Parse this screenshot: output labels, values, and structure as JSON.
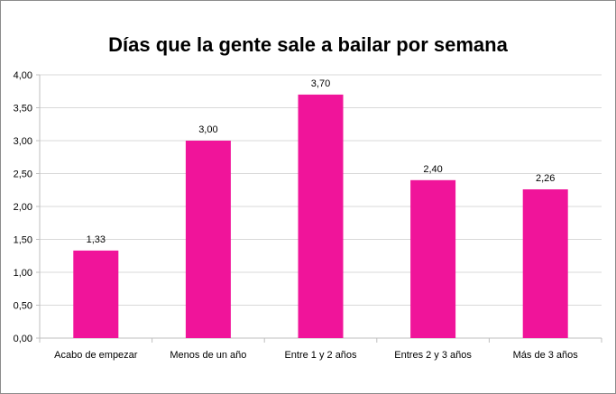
{
  "chart_data": {
    "type": "bar",
    "title": "Días que la gente sale a bailar por semana",
    "categories": [
      "Acabo de empezar",
      "Menos de un año",
      "Entre 1 y 2 años",
      "Entres 2 y 3 años",
      "Más de 3 años"
    ],
    "values": [
      1.33,
      3.0,
      3.7,
      2.4,
      2.26
    ],
    "data_labels": [
      "1,33",
      "3,00",
      "3,70",
      "2,40",
      "2,26"
    ],
    "xlabel": "",
    "ylabel": "",
    "ylim": [
      0,
      4
    ],
    "yticks": [
      0,
      0.5,
      1,
      1.5,
      2,
      2.5,
      3,
      3.5,
      4
    ],
    "ytick_labels": [
      "0,00",
      "0,50",
      "1,00",
      "1,50",
      "2,00",
      "2,50",
      "3,00",
      "3,50",
      "4,00"
    ],
    "grid": true,
    "legend": "none",
    "bar_color": "#F0149A"
  }
}
